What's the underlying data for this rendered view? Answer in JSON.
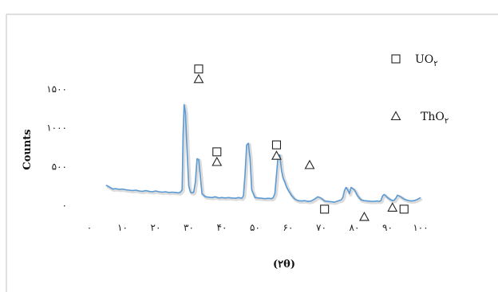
{
  "chart_data": {
    "type": "line",
    "title": "",
    "xlabel": "(۲θ)",
    "ylabel": "Counts",
    "xlim": [
      0,
      100
    ],
    "ylim": [
      0,
      1500
    ],
    "x_ticks": [
      0,
      10,
      20,
      30,
      40,
      50,
      60,
      70,
      80,
      90,
      100
    ],
    "x_tick_labels": [
      "۰",
      "۱۰",
      "۲۰",
      "۳۰",
      "۴۰",
      "۵۰",
      "۶۰",
      "۷۰",
      "۸۰",
      "۹۰",
      "۱۰۰"
    ],
    "y_ticks": [
      0,
      500,
      1000,
      1500
    ],
    "y_tick_labels": [
      "۰",
      "۵۰۰",
      "۱۰۰۰",
      "۱۵۰۰"
    ],
    "grid": false,
    "legend_position": "right",
    "line_color": "#5b9bd5",
    "series": [
      {
        "x": [
          5,
          6,
          7,
          8,
          9,
          10,
          11,
          12,
          13,
          14,
          15,
          16,
          17,
          18,
          19,
          20,
          21,
          22,
          23,
          24,
          25,
          26,
          27,
          27.5,
          28,
          28.3,
          28.6,
          29,
          29.5,
          30,
          30.5,
          31,
          31.5,
          32,
          32.5,
          33,
          34,
          35,
          36,
          37,
          38,
          39,
          40,
          41,
          42,
          43,
          44,
          45,
          46,
          46.5,
          47,
          47.5,
          48,
          48.5,
          49,
          50,
          51,
          52,
          53,
          54,
          55,
          55.5,
          56,
          56.5,
          57,
          57.5,
          58,
          58.5,
          59,
          59.5,
          60,
          61,
          62,
          63,
          64,
          65,
          66,
          67,
          68,
          69,
          70,
          71,
          72,
          73,
          74,
          75,
          76,
          76.5,
          77,
          77.5,
          78,
          78.5,
          79,
          80,
          81,
          82,
          83,
          84,
          85,
          86,
          87,
          87.5,
          88,
          88.5,
          89,
          90,
          91,
          91.5,
          92,
          92.5,
          93,
          94,
          95,
          96,
          97,
          98,
          99,
          100
        ],
        "y": [
          260,
          235,
          210,
          215,
          205,
          210,
          200,
          195,
          190,
          195,
          185,
          180,
          190,
          180,
          175,
          185,
          175,
          170,
          175,
          165,
          170,
          165,
          160,
          170,
          200,
          900,
          1300,
          1200,
          700,
          250,
          170,
          160,
          170,
          300,
          600,
          590,
          150,
          110,
          105,
          100,
          110,
          95,
          100,
          95,
          100,
          95,
          90,
          100,
          90,
          120,
          400,
          780,
          800,
          600,
          200,
          100,
          95,
          90,
          85,
          90,
          85,
          100,
          150,
          400,
          640,
          650,
          450,
          350,
          300,
          240,
          200,
          130,
          80,
          60,
          55,
          60,
          50,
          55,
          80,
          110,
          90,
          55,
          50,
          45,
          40,
          55,
          70,
          100,
          190,
          230,
          200,
          150,
          230,
          200,
          120,
          70,
          60,
          55,
          50,
          50,
          55,
          50,
          60,
          120,
          140,
          100,
          70,
          60,
          65,
          90,
          130,
          110,
          80,
          65,
          55,
          60,
          75,
          100
        ]
      }
    ],
    "annotations": [
      {
        "marker": "square",
        "x": 33,
        "y": 1760
      },
      {
        "marker": "triangle",
        "x": 33,
        "y": 1630
      },
      {
        "marker": "square",
        "x": 38.5,
        "y": 690
      },
      {
        "marker": "triangle",
        "x": 38.5,
        "y": 560
      },
      {
        "marker": "square",
        "x": 56.5,
        "y": 780
      },
      {
        "marker": "triangle",
        "x": 56.5,
        "y": 640
      },
      {
        "marker": "triangle",
        "x": 66.5,
        "y": 520
      },
      {
        "marker": "square",
        "x": 71,
        "y": -50
      },
      {
        "marker": "triangle",
        "x": 83,
        "y": -150
      },
      {
        "marker": "triangle",
        "x": 91.5,
        "y": -30
      },
      {
        "marker": "square",
        "x": 95,
        "y": -50
      }
    ],
    "legend": [
      {
        "marker": "square",
        "label_main": "UO",
        "label_sub": "۲"
      },
      {
        "marker": "triangle",
        "label_main": "ThO",
        "label_sub": "۲"
      }
    ]
  }
}
